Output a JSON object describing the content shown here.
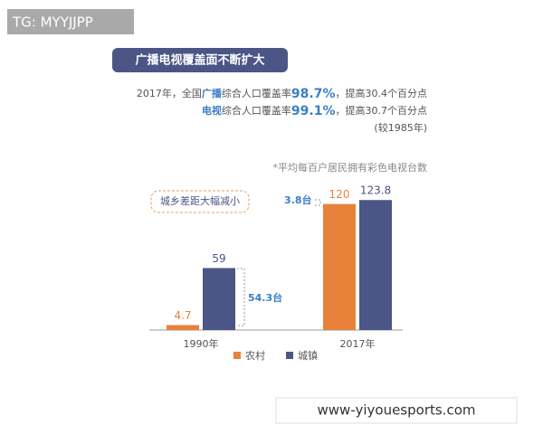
{
  "header": {
    "badge": "TG: MYYJJPP",
    "footer": "www-yiyouesports.com"
  },
  "chart_data": {
    "type": "bar",
    "title": "广播电视覆盖面不断扩大",
    "summary": [
      [
        "2017年，全国",
        "广播",
        "综合人口覆盖率",
        "98.7%",
        "，提高30.4个百分点"
      ],
      [
        "电视",
        "综合人口覆盖率",
        "99.1%",
        "，提高30.7个百分点"
      ],
      [
        "(较1985年)"
      ]
    ],
    "subtitle": "*平均每百户居民拥有彩色电视台数",
    "annotations": [
      "城乡差距大幅减小",
      "54.3台",
      "3.8台"
    ],
    "categories": [
      "1990年",
      "2017年"
    ],
    "series": [
      {
        "name": "农村",
        "color": "#e8823a",
        "values": [
          4.7,
          120
        ]
      },
      {
        "name": "城镇",
        "color": "#4b5686",
        "values": [
          59,
          123.8
        ]
      }
    ]
  }
}
